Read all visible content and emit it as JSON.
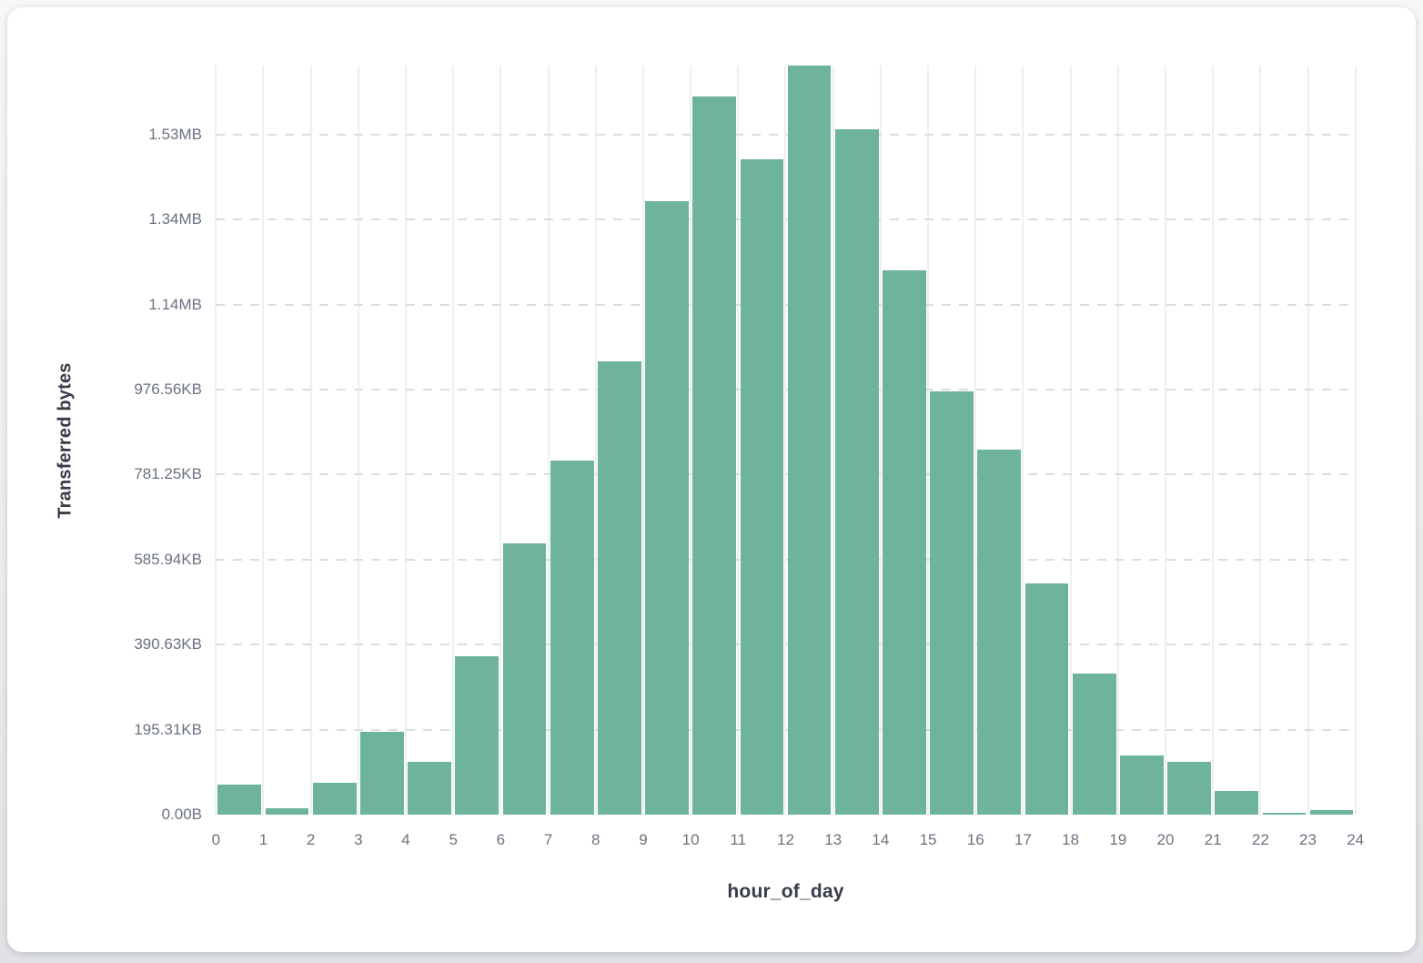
{
  "chart_data": {
    "type": "bar",
    "title": "",
    "xlabel": "hour_of_day",
    "ylabel": "Transferred bytes",
    "categories": [
      0,
      1,
      2,
      3,
      4,
      5,
      6,
      7,
      8,
      9,
      10,
      11,
      12,
      13,
      14,
      15,
      16,
      17,
      18,
      19,
      20,
      21,
      22,
      23
    ],
    "values_bytes": [
      71000,
      14000,
      76000,
      194000,
      125000,
      372000,
      638000,
      833000,
      1066000,
      1442000,
      1689000,
      1542000,
      1762000,
      1612000,
      1280000,
      996000,
      858000,
      544000,
      332000,
      139000,
      124000,
      56000,
      4000,
      11000
    ],
    "x_tick_labels": [
      "0",
      "1",
      "2",
      "3",
      "4",
      "5",
      "6",
      "7",
      "8",
      "9",
      "10",
      "11",
      "12",
      "13",
      "14",
      "15",
      "16",
      "17",
      "18",
      "19",
      "20",
      "21",
      "22",
      "23",
      "24"
    ],
    "y_ticks": [
      {
        "value": 0,
        "label": "0.00B"
      },
      {
        "value": 200000,
        "label": "195.31KB"
      },
      {
        "value": 400000,
        "label": "390.63KB"
      },
      {
        "value": 600000,
        "label": "585.94KB"
      },
      {
        "value": 800000,
        "label": "781.25KB"
      },
      {
        "value": 1000000,
        "label": "976.56KB"
      },
      {
        "value": 1200000,
        "label": "1.14MB"
      },
      {
        "value": 1400000,
        "label": "1.34MB"
      },
      {
        "value": 1600000,
        "label": "1.53MB"
      }
    ],
    "xlim": [
      0,
      24
    ],
    "ylim": [
      0,
      1762000
    ],
    "grid": "horizontal-dashed-and-vertical-solid",
    "legend": "none",
    "bar_color": "#6db39d",
    "gridline_vertical_color": "#edeff3",
    "gridline_horizontal_color": "#dadde4",
    "tick_label_color": "#6b7280",
    "axis_title_color": "#363c48",
    "card_background": "#ffffff",
    "page_background": "#ecedf0"
  }
}
